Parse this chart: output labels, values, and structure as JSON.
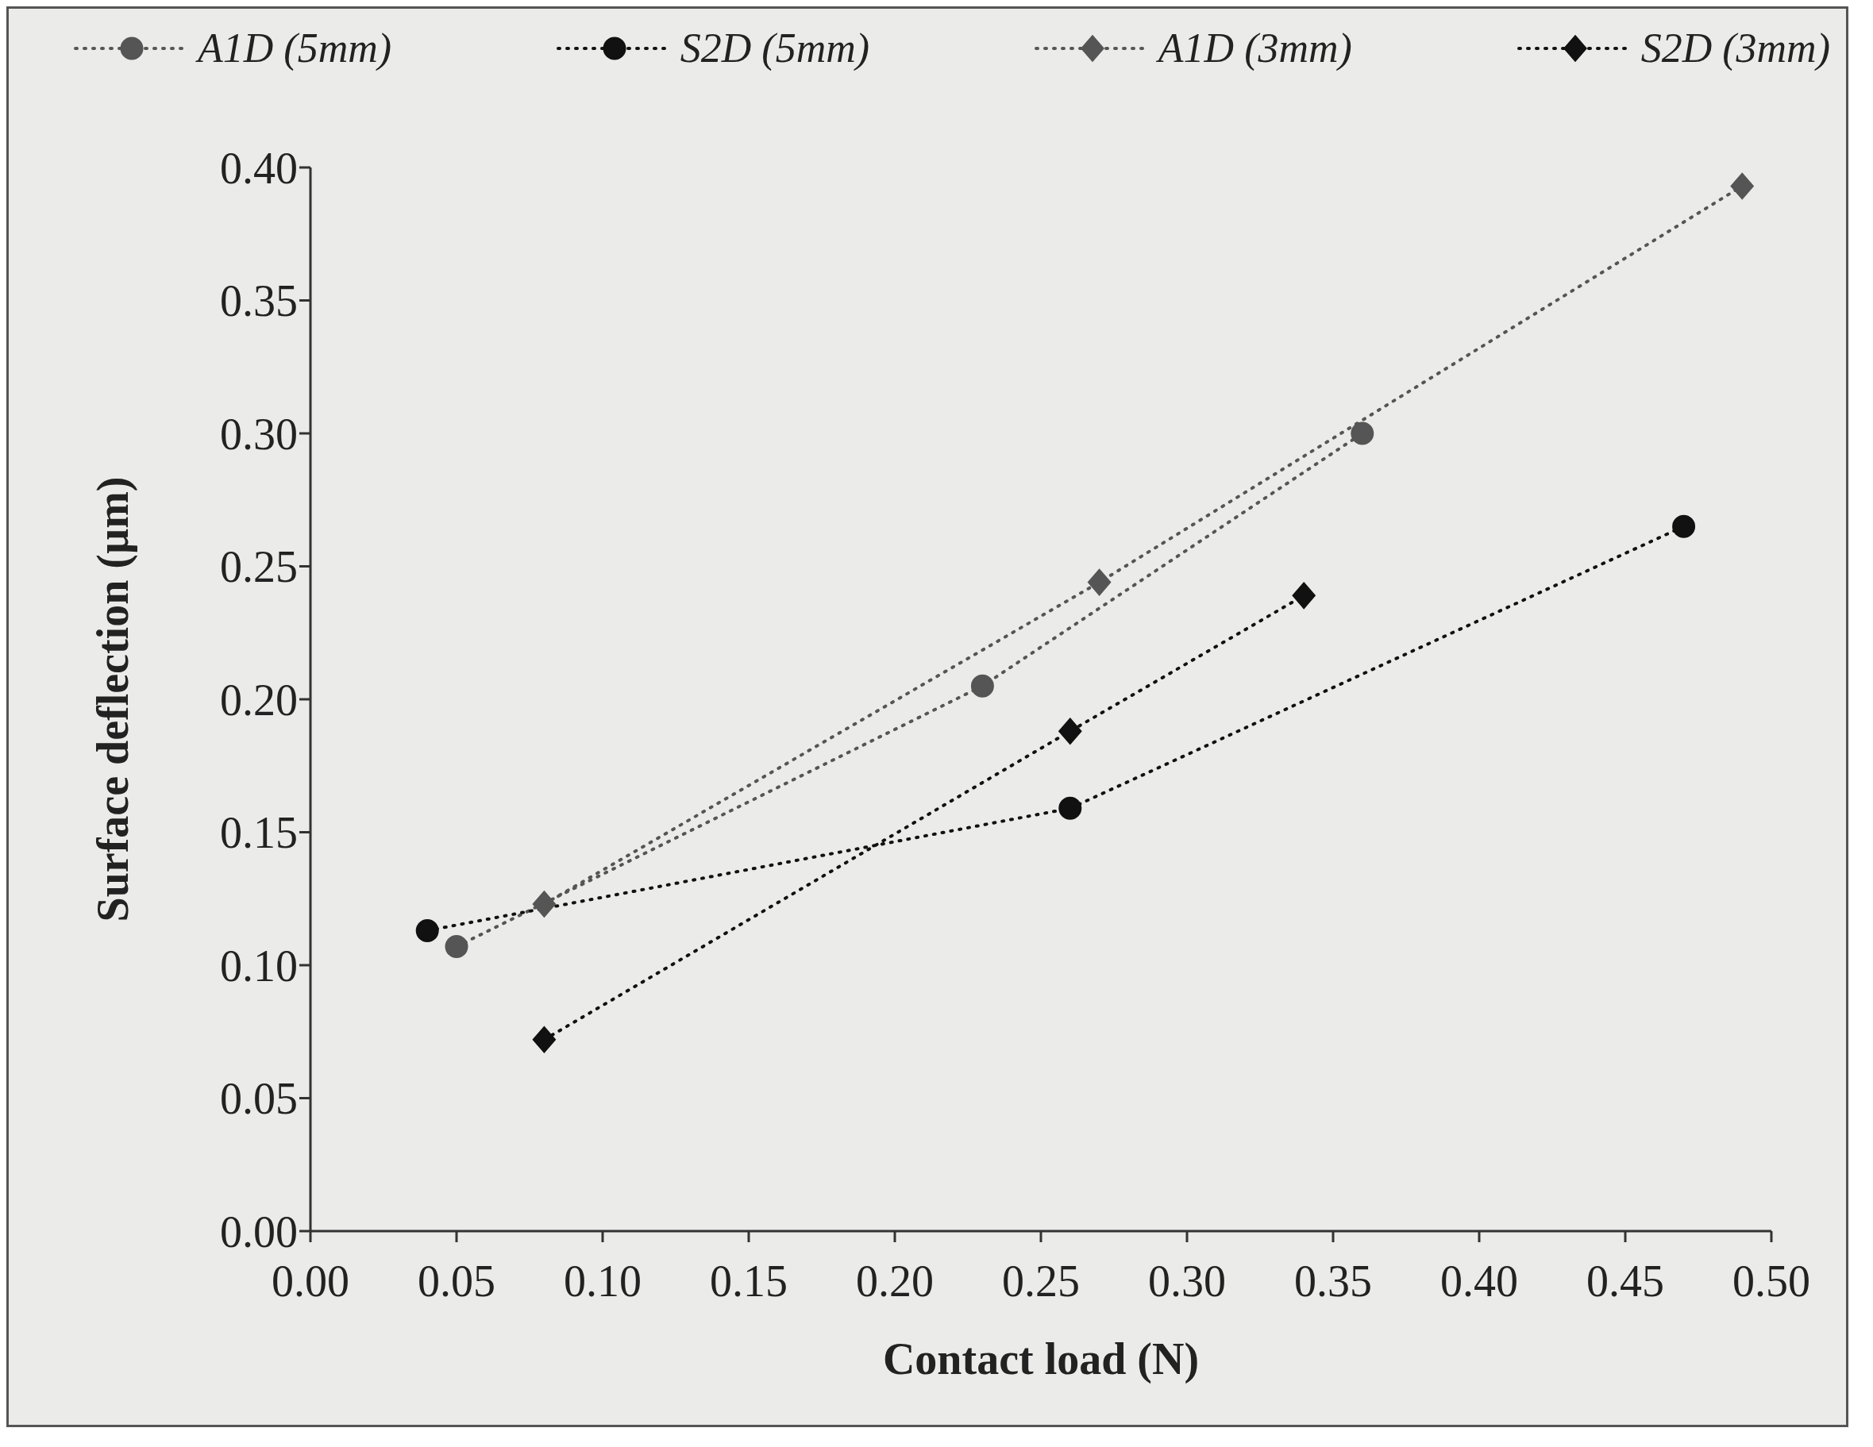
{
  "chart_data": {
    "type": "line",
    "xlabel": "Contact load (N)",
    "ylabel": "Surface deflection (µm)",
    "xlim": [
      0,
      0.5
    ],
    "xticks": [
      {
        "value": 0,
        "label": "0.00"
      },
      {
        "value": 0.05,
        "label": "0.05"
      },
      {
        "value": 0.1,
        "label": "0.10"
      },
      {
        "value": 0.15,
        "label": "0.15"
      },
      {
        "value": 0.2,
        "label": "0.20"
      },
      {
        "value": 0.25,
        "label": "0.25"
      },
      {
        "value": 0.3,
        "label": "0.30"
      },
      {
        "value": 0.35,
        "label": "0.35"
      },
      {
        "value": 0.4,
        "label": "0.40"
      },
      {
        "value": 0.45,
        "label": "0.45"
      },
      {
        "value": 0.5,
        "label": "0.50"
      }
    ],
    "ylim": [
      0,
      0.4
    ],
    "yticks": [
      {
        "value": 0,
        "label": "0.00"
      },
      {
        "value": 0.05,
        "label": "0.05"
      },
      {
        "value": 0.1,
        "label": "0.10"
      },
      {
        "value": 0.15,
        "label": "0.15"
      },
      {
        "value": 0.2,
        "label": "0.20"
      },
      {
        "value": 0.25,
        "label": "0.25"
      },
      {
        "value": 0.3,
        "label": "0.30"
      },
      {
        "value": 0.35,
        "label": "0.35"
      },
      {
        "value": 0.4,
        "label": "0.40"
      }
    ],
    "grid": false,
    "legend": "top",
    "line_style": "dotted",
    "series": [
      {
        "name": "A1D (5mm)",
        "color": "#555555",
        "marker": "circle",
        "x": [
          0.05,
          0.23,
          0.36
        ],
        "values": [
          0.107,
          0.205,
          0.3
        ]
      },
      {
        "name": "S2D (5mm)",
        "color": "#111111",
        "marker": "circle",
        "x": [
          0.04,
          0.26,
          0.47
        ],
        "values": [
          0.113,
          0.159,
          0.265
        ]
      },
      {
        "name": "A1D (3mm)",
        "color": "#555555",
        "marker": "diamond",
        "x": [
          0.08,
          0.27,
          0.49
        ],
        "values": [
          0.123,
          0.244,
          0.393
        ]
      },
      {
        "name": "S2D (3mm)",
        "color": "#111111",
        "marker": "diamond",
        "x": [
          0.08,
          0.26,
          0.34
        ],
        "values": [
          0.072,
          0.188,
          0.239
        ]
      }
    ]
  }
}
